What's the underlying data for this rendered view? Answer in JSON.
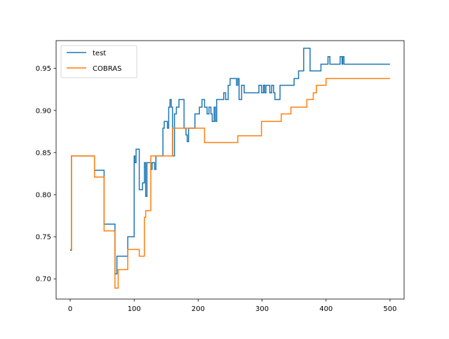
{
  "chart_data": {
    "type": "line",
    "title": "",
    "xlabel": "",
    "ylabel": "",
    "xlim": [
      -22,
      522
    ],
    "ylim": [
      0.676,
      0.983
    ],
    "xticks": [
      0,
      100,
      200,
      300,
      400,
      500
    ],
    "xtick_labels": [
      "0",
      "100",
      "200",
      "300",
      "400",
      "500"
    ],
    "yticks": [
      0.7,
      0.75,
      0.8,
      0.85,
      0.9,
      0.95
    ],
    "ytick_labels": [
      "0.70",
      "0.75",
      "0.80",
      "0.85",
      "0.90",
      "0.95"
    ],
    "grid": false,
    "legend": "upper left",
    "series": [
      {
        "name": "test",
        "color": "#1f77b4",
        "step": true,
        "points": [
          [
            0,
            0.734
          ],
          [
            2,
            0.846
          ],
          [
            38,
            0.829
          ],
          [
            53,
            0.765
          ],
          [
            70,
            0.706
          ],
          [
            73,
            0.727
          ],
          [
            90,
            0.75
          ],
          [
            100,
            0.846
          ],
          [
            101,
            0.838
          ],
          [
            103,
            0.854
          ],
          [
            108,
            0.806
          ],
          [
            113,
            0.814
          ],
          [
            116,
            0.838
          ],
          [
            118,
            0.798
          ],
          [
            120,
            0.838
          ],
          [
            126,
            0.83
          ],
          [
            128,
            0.838
          ],
          [
            132,
            0.83
          ],
          [
            134,
            0.846
          ],
          [
            145,
            0.879
          ],
          [
            147,
            0.887
          ],
          [
            152,
            0.879
          ],
          [
            154,
            0.904
          ],
          [
            156,
            0.913
          ],
          [
            158,
            0.904
          ],
          [
            160,
            0.846
          ],
          [
            163,
            0.896
          ],
          [
            166,
            0.904
          ],
          [
            170,
            0.913
          ],
          [
            178,
            0.879
          ],
          [
            181,
            0.871
          ],
          [
            183,
            0.863
          ],
          [
            185,
            0.879
          ],
          [
            195,
            0.896
          ],
          [
            202,
            0.904
          ],
          [
            206,
            0.913
          ],
          [
            210,
            0.904
          ],
          [
            214,
            0.896
          ],
          [
            217,
            0.904
          ],
          [
            220,
            0.896
          ],
          [
            222,
            0.887
          ],
          [
            225,
            0.904
          ],
          [
            227,
            0.887
          ],
          [
            229,
            0.913
          ],
          [
            240,
            0.921
          ],
          [
            243,
            0.913
          ],
          [
            247,
            0.93
          ],
          [
            250,
            0.938
          ],
          [
            260,
            0.93
          ],
          [
            262,
            0.938
          ],
          [
            264,
            0.913
          ],
          [
            268,
            0.93
          ],
          [
            272,
            0.921
          ],
          [
            295,
            0.93
          ],
          [
            299,
            0.921
          ],
          [
            302,
            0.93
          ],
          [
            304,
            0.921
          ],
          [
            306,
            0.93
          ],
          [
            312,
            0.921
          ],
          [
            315,
            0.93
          ],
          [
            318,
            0.921
          ],
          [
            320,
            0.913
          ],
          [
            328,
            0.93
          ],
          [
            350,
            0.938
          ],
          [
            357,
            0.947
          ],
          [
            365,
            0.974
          ],
          [
            375,
            0.947
          ],
          [
            392,
            0.955
          ],
          [
            400,
            0.955
          ],
          [
            403,
            0.964
          ],
          [
            406,
            0.955
          ],
          [
            422,
            0.964
          ],
          [
            425,
            0.955
          ],
          [
            426,
            0.964
          ],
          [
            428,
            0.955
          ],
          [
            500,
            0.955
          ]
        ]
      },
      {
        "name": "COBRAS",
        "color": "#ff7f0e",
        "step": true,
        "points": [
          [
            0,
            0.735
          ],
          [
            2,
            0.846
          ],
          [
            38,
            0.821
          ],
          [
            53,
            0.757
          ],
          [
            70,
            0.689
          ],
          [
            75,
            0.711
          ],
          [
            90,
            0.735
          ],
          [
            108,
            0.727
          ],
          [
            116,
            0.773
          ],
          [
            118,
            0.781
          ],
          [
            126,
            0.846
          ],
          [
            160,
            0.879
          ],
          [
            210,
            0.862
          ],
          [
            262,
            0.87
          ],
          [
            299,
            0.887
          ],
          [
            330,
            0.896
          ],
          [
            345,
            0.904
          ],
          [
            370,
            0.913
          ],
          [
            380,
            0.921
          ],
          [
            385,
            0.93
          ],
          [
            400,
            0.938
          ],
          [
            500,
            0.938
          ]
        ]
      }
    ]
  }
}
